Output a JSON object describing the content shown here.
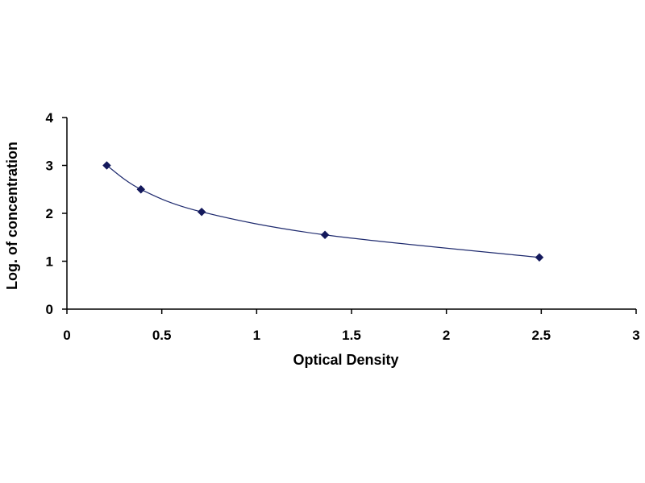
{
  "chart_data": {
    "type": "scatter",
    "title": "",
    "xlabel": "Optical Density",
    "ylabel": "Log. of concentration",
    "xlim": [
      0,
      3
    ],
    "ylim": [
      0,
      4
    ],
    "x_ticks": [
      "0",
      "0.5",
      "1",
      "1.5",
      "2",
      "2.5",
      "3"
    ],
    "y_ticks": [
      "0",
      "1",
      "2",
      "3",
      "4"
    ],
    "grid": false,
    "legend": "none",
    "series": [
      {
        "x": [
          0.21,
          0.39,
          0.71,
          1.36,
          2.49
        ],
        "y": [
          3.0,
          2.5,
          2.03,
          1.55,
          1.08
        ],
        "marker": "diamond",
        "line": "smooth",
        "color": "#14195c"
      }
    ]
  }
}
